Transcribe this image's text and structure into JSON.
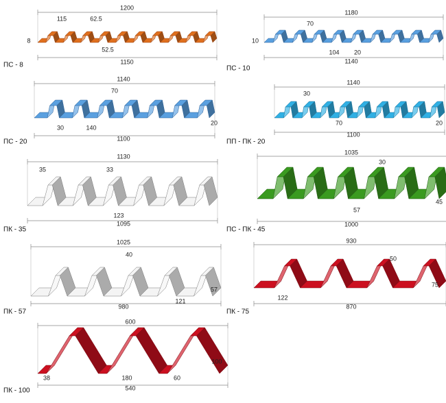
{
  "profiles": [
    {
      "name": "ПС - 8",
      "dimensions": [
        "1200",
        "115",
        "62.5",
        "8",
        "52.5",
        "1150"
      ]
    },
    {
      "name": "ПС - 10",
      "dimensions": [
        "1180",
        "70",
        "10",
        "104",
        "20",
        "1140"
      ]
    },
    {
      "name": "ПС - 20",
      "dimensions": [
        "1140",
        "70",
        "30",
        "140",
        "20",
        "1100"
      ]
    },
    {
      "name": "ПП - ПК - 20",
      "dimensions": [
        "1140",
        "30",
        "70",
        "20",
        "1100"
      ]
    },
    {
      "name": "ПК - 35",
      "dimensions": [
        "1130",
        "35",
        "33",
        "123",
        "1095"
      ]
    },
    {
      "name": "ПС - ПК - 45",
      "dimensions": [
        "1035",
        "30",
        "57",
        "45",
        "1000"
      ]
    },
    {
      "name": "ПК - 57",
      "dimensions": [
        "1025",
        "40",
        "121",
        "57",
        "980"
      ]
    },
    {
      "name": "ПК - 75",
      "dimensions": [
        "930",
        "50",
        "75",
        "122",
        "870"
      ]
    },
    {
      "name": "ПК - 100",
      "dimensions": [
        "600",
        "100",
        "38",
        "180",
        "60",
        "540"
      ]
    }
  ]
}
